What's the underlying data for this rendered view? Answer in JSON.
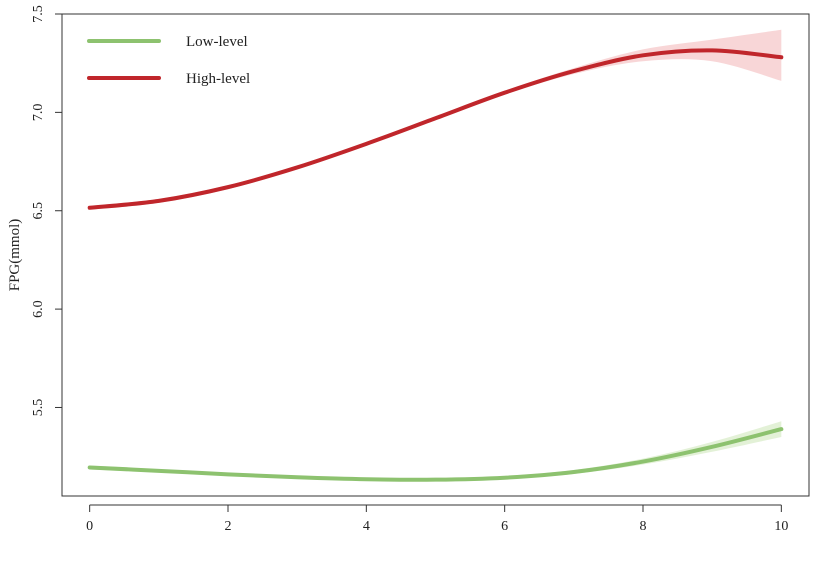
{
  "chart_data": {
    "type": "line",
    "title": "",
    "xlabel": "",
    "ylabel": "FPG(mmol)",
    "xlim": [
      -0.4,
      10.4
    ],
    "ylim": [
      5.05,
      7.5
    ],
    "x_ticks": [
      "0",
      "2",
      "4",
      "6",
      "8",
      "10"
    ],
    "y_ticks": [
      "5.5",
      "6.0",
      "6.5",
      "7.0",
      "7.5"
    ],
    "legend_position": "top-left",
    "grid": false,
    "series": [
      {
        "name": "Low-level",
        "color": "#8dc26f",
        "band_color": "#d9ecc9",
        "x": [
          0,
          1,
          2,
          3,
          4,
          5,
          6,
          7,
          8,
          9,
          10
        ],
        "y": [
          5.195,
          5.178,
          5.16,
          5.145,
          5.135,
          5.133,
          5.143,
          5.172,
          5.225,
          5.3,
          5.39
        ],
        "lower": [
          5.185,
          5.17,
          5.153,
          5.138,
          5.128,
          5.126,
          5.135,
          5.162,
          5.21,
          5.275,
          5.35
        ],
        "upper": [
          5.205,
          5.186,
          5.167,
          5.152,
          5.142,
          5.14,
          5.151,
          5.182,
          5.24,
          5.325,
          5.43
        ]
      },
      {
        "name": "High-level",
        "color": "#c0262b",
        "band_color": "#f6c8c9",
        "x": [
          0,
          1,
          2,
          3,
          4,
          5,
          6,
          7,
          8,
          9,
          10
        ],
        "y": [
          6.515,
          6.55,
          6.62,
          6.72,
          6.84,
          6.97,
          7.1,
          7.21,
          7.29,
          7.315,
          7.28
        ],
        "lower": [
          6.505,
          6.54,
          6.61,
          6.71,
          6.83,
          6.96,
          7.09,
          7.195,
          7.26,
          7.26,
          7.16
        ],
        "upper": [
          6.525,
          6.56,
          6.63,
          6.73,
          6.85,
          6.98,
          7.11,
          7.225,
          7.32,
          7.37,
          7.42
        ]
      }
    ]
  }
}
